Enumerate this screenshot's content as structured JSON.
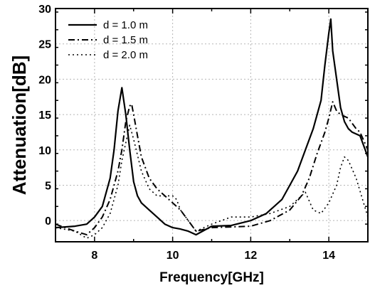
{
  "chart_data": {
    "type": "line",
    "title": "",
    "xlabel": "Frequency[GHz]",
    "ylabel": "Attenuation[dB]",
    "xlim": [
      7,
      15
    ],
    "ylim": [
      -3,
      30
    ],
    "xticks": [
      8,
      10,
      12,
      14
    ],
    "yticks": [
      0,
      5,
      10,
      15,
      20,
      25,
      30
    ],
    "grid": true,
    "legend_position": "top-left",
    "series": [
      {
        "name": "d = 1.0 m",
        "line_style": "solid",
        "x": [
          7.0,
          7.5,
          7.8,
          8.0,
          8.2,
          8.4,
          8.5,
          8.6,
          8.7,
          8.8,
          8.9,
          9.0,
          9.1,
          9.2,
          9.4,
          9.6,
          9.8,
          10.0,
          10.2,
          10.4,
          10.6,
          11.0,
          11.5,
          12.0,
          12.4,
          12.8,
          13.0,
          13.2,
          13.4,
          13.6,
          13.8,
          13.9,
          14.0,
          14.05,
          14.1,
          14.2,
          14.3,
          14.4,
          14.5,
          14.6,
          14.8,
          15.0
        ],
        "y": [
          -1.0,
          -0.8,
          -0.5,
          0.5,
          2.0,
          6.0,
          10.0,
          15.5,
          18.8,
          15.0,
          10.0,
          5.5,
          3.5,
          2.5,
          1.5,
          0.5,
          -0.5,
          -1.0,
          -1.2,
          -1.5,
          -2.0,
          -0.8,
          -0.7,
          0.0,
          1.0,
          3.0,
          5.0,
          7.0,
          10.0,
          13.0,
          17.0,
          22.0,
          26.5,
          28.5,
          24.0,
          20.0,
          16.0,
          14.0,
          13.0,
          12.5,
          12.0,
          9.0
        ]
      },
      {
        "name": "d = 1.5 m",
        "line_style": "dash-dot",
        "x": [
          7.0,
          7.5,
          7.8,
          8.0,
          8.2,
          8.4,
          8.6,
          8.7,
          8.8,
          8.9,
          8.95,
          9.0,
          9.1,
          9.2,
          9.4,
          9.6,
          9.8,
          10.0,
          10.2,
          10.4,
          10.6,
          11.0,
          11.5,
          12.0,
          12.5,
          13.0,
          13.3,
          13.5,
          13.7,
          13.9,
          14.0,
          14.1,
          14.2,
          14.3,
          14.5,
          14.7,
          14.8,
          15.0
        ],
        "y": [
          -0.5,
          -1.5,
          -2.0,
          -1.0,
          0.5,
          3.0,
          7.0,
          10.0,
          14.0,
          16.2,
          16.5,
          15.0,
          12.0,
          9.0,
          6.0,
          4.5,
          3.5,
          2.5,
          1.5,
          0.0,
          -1.5,
          -1.0,
          -0.9,
          -0.8,
          0.0,
          1.5,
          3.5,
          6.0,
          9.5,
          12.5,
          14.5,
          16.8,
          15.5,
          15.0,
          14.5,
          13.0,
          12.5,
          10.0
        ]
      },
      {
        "name": "d = 2.0 m",
        "line_style": "dotted",
        "x": [
          7.0,
          7.5,
          7.8,
          8.0,
          8.2,
          8.4,
          8.6,
          8.7,
          8.8,
          8.9,
          9.0,
          9.2,
          9.4,
          9.6,
          9.8,
          10.0,
          10.1,
          10.2,
          10.4,
          10.6,
          11.0,
          11.5,
          12.0,
          12.5,
          13.0,
          13.2,
          13.4,
          13.6,
          13.8,
          14.0,
          14.2,
          14.3,
          14.4,
          14.5,
          14.7,
          15.0
        ],
        "y": [
          -1.0,
          -1.5,
          -2.5,
          -2.0,
          -1.0,
          1.0,
          5.0,
          8.5,
          11.0,
          13.5,
          11.5,
          7.0,
          4.5,
          3.5,
          3.5,
          3.5,
          3.0,
          1.5,
          0.0,
          -1.5,
          -0.5,
          0.5,
          0.5,
          1.0,
          2.0,
          3.0,
          4.0,
          1.5,
          1.0,
          2.5,
          5.0,
          7.5,
          9.0,
          8.5,
          6.0,
          0.5
        ]
      }
    ]
  }
}
